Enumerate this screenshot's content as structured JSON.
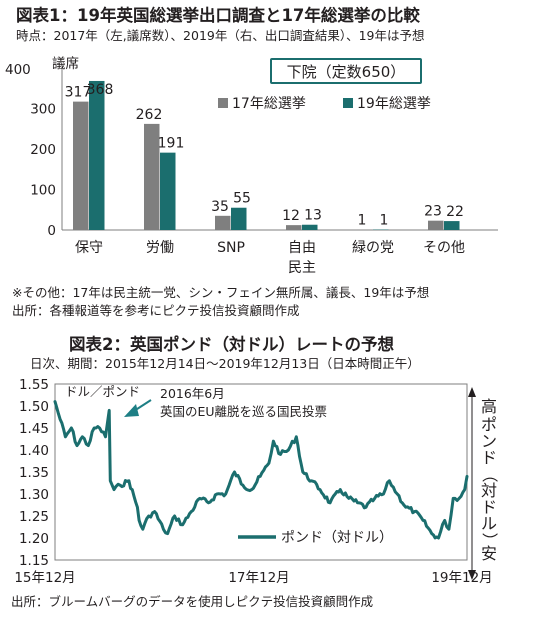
{
  "chart_data": [
    {
      "type": "bar",
      "title": "図表1：19年英国総選挙出口調査と17年総選挙の比較",
      "subtitle": "時点：2017年（左,議席数）、2019年（右、出口調査結果）、19年は予想",
      "ylabel": "議席",
      "ylim": [
        0,
        400
      ],
      "yticks": [
        0,
        100,
        200,
        300,
        400
      ],
      "categories": [
        "保守",
        "労働",
        "SNP",
        "自由\n民主",
        "緑の党",
        "その他"
      ],
      "series": [
        {
          "name": "17年総選挙",
          "values": [
            317,
            262,
            35,
            12,
            1,
            23
          ]
        },
        {
          "name": "19年総選挙",
          "values": [
            368,
            191,
            55,
            13,
            1,
            22
          ]
        }
      ],
      "annotation": "下院（定数650）",
      "notes": [
        "※その他：17年は民主統一党、シン・フェイン無所属、議長、19年は予想",
        "出所：各種報道等を参考にピクテ投信投資顧問作成"
      ],
      "legend_position": "right"
    },
    {
      "type": "line",
      "title": "図表2：英国ポンド（対ドル）レートの予想",
      "subtitle": "日次、期間：2015年12月14日～2019年12月13日（日本時間正午）",
      "ylabel": "ドル／ポンド",
      "ylim": [
        1.15,
        1.55
      ],
      "yticks": [
        1.15,
        1.2,
        1.25,
        1.3,
        1.35,
        1.4,
        1.45,
        1.5,
        1.55
      ],
      "xticks": [
        "15年12月",
        "17年12月",
        "19年12月"
      ],
      "xrange": [
        "2015-12-14",
        "2019-12-13"
      ],
      "series": [
        {
          "name": "ポンド（対ドル）",
          "x": [
            "2015-12-14",
            "2016-01-01",
            "2016-01-20",
            "2016-02-10",
            "2016-03-01",
            "2016-03-20",
            "2016-04-10",
            "2016-05-01",
            "2016-05-20",
            "2016-06-10",
            "2016-06-23",
            "2016-06-27",
            "2016-07-10",
            "2016-08-01",
            "2016-09-01",
            "2016-10-01",
            "2016-10-07",
            "2016-10-20",
            "2016-11-10",
            "2016-12-01",
            "2017-01-01",
            "2017-01-16",
            "2017-02-10",
            "2017-03-10",
            "2017-04-10",
            "2017-05-10",
            "2017-06-10",
            "2017-07-10",
            "2017-08-10",
            "2017-09-10",
            "2017-10-10",
            "2017-11-10",
            "2017-12-10",
            "2018-01-10",
            "2018-01-26",
            "2018-02-20",
            "2018-03-20",
            "2018-04-17",
            "2018-05-10",
            "2018-06-10",
            "2018-07-10",
            "2018-08-15",
            "2018-09-20",
            "2018-10-20",
            "2018-11-20",
            "2018-12-20",
            "2019-01-20",
            "2019-02-20",
            "2019-03-13",
            "2019-04-10",
            "2019-05-10",
            "2019-06-10",
            "2019-07-10",
            "2019-08-10",
            "2019-09-03",
            "2019-09-25",
            "2019-10-10",
            "2019-10-25",
            "2019-11-15",
            "2019-12-05",
            "2019-12-13"
          ],
          "values": [
            1.51,
            1.47,
            1.43,
            1.45,
            1.41,
            1.43,
            1.41,
            1.45,
            1.45,
            1.43,
            1.49,
            1.33,
            1.31,
            1.32,
            1.33,
            1.27,
            1.24,
            1.22,
            1.25,
            1.26,
            1.22,
            1.21,
            1.25,
            1.23,
            1.26,
            1.29,
            1.28,
            1.3,
            1.3,
            1.35,
            1.32,
            1.31,
            1.34,
            1.37,
            1.42,
            1.39,
            1.4,
            1.43,
            1.35,
            1.33,
            1.31,
            1.28,
            1.31,
            1.29,
            1.28,
            1.27,
            1.29,
            1.3,
            1.33,
            1.3,
            1.27,
            1.26,
            1.24,
            1.21,
            1.2,
            1.24,
            1.22,
            1.29,
            1.29,
            1.31,
            1.34
          ]
        }
      ],
      "annotation": [
        "2016年6月",
        "英国のEU離脱を巡る国民投票"
      ],
      "side_label_top": "高",
      "side_label_mid": "ポンド（対ドル）",
      "side_label_bottom": "安",
      "notes": [
        "出所：ブルームバーグのデータを使用しピクテ投信投資顧問作成"
      ],
      "legend_position": "bottom-center"
    }
  ],
  "colors": {
    "s17": "#7f7f7f",
    "s19": "#1b6e6e",
    "line": "#1b6e6e",
    "box": "#1b6e6e",
    "arrow": "#1e7f85"
  }
}
